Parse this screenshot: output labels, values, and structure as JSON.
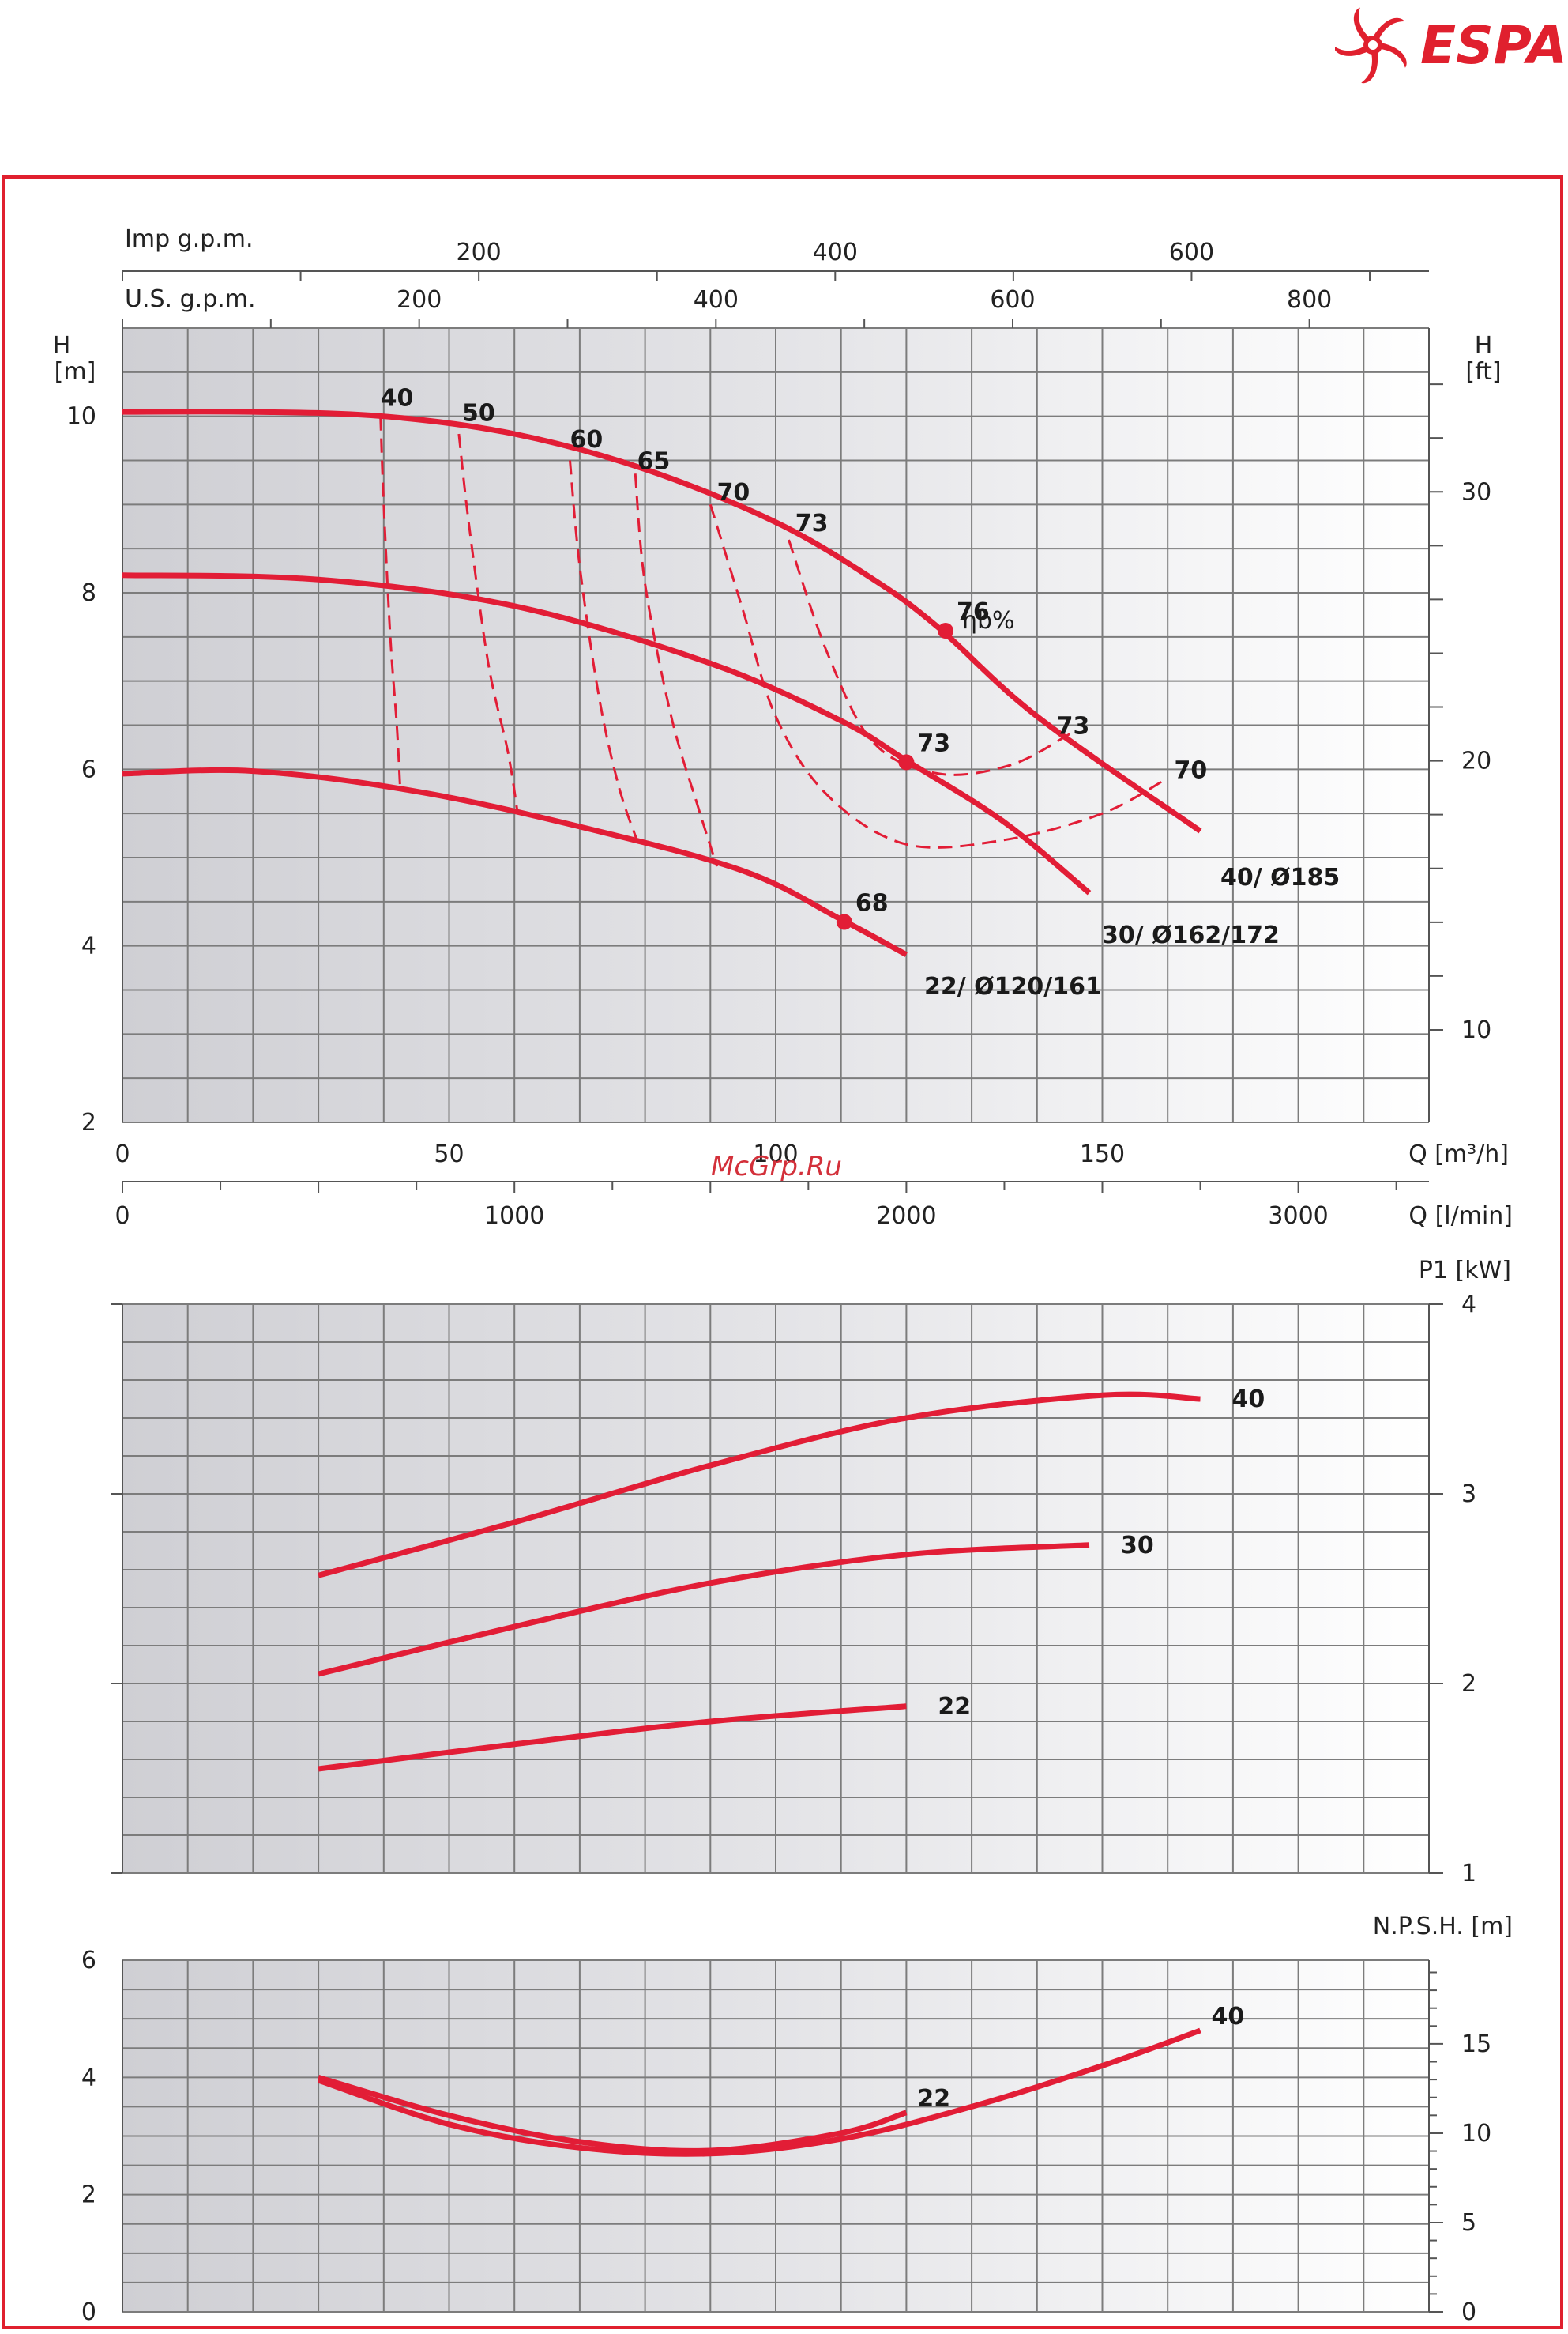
{
  "brand": {
    "name": "ESPA",
    "color": "#e0202e"
  },
  "watermark": "McGrp.Ru",
  "colors": {
    "curve": "#e21d36",
    "grid": "#7c7c7c",
    "frame": "#e0202e"
  },
  "chart_data": [
    {
      "type": "line",
      "id": "head",
      "title": "",
      "ylabel_left": [
        "H",
        "[m]"
      ],
      "ylabel_right": [
        "H",
        "[ft]"
      ],
      "xlabel": "Q [m³/h]",
      "xlabel_lmin": "Q [l/min]",
      "label_imp": "Imp g.p.m.",
      "label_us": "U.S. g.p.m.",
      "xlim": [
        0,
        200
      ],
      "ylim": [
        2,
        11
      ],
      "x_ticks": [
        0,
        50,
        100,
        150
      ],
      "y_ticks_left": [
        2,
        4,
        6,
        8,
        10
      ],
      "y_ticks_right": [
        10,
        20,
        30
      ],
      "lmin_ticks": [
        0,
        1000,
        2000,
        3000
      ],
      "imp_ticks": [
        200,
        400,
        600
      ],
      "us_ticks": [
        200,
        400,
        600,
        800
      ],
      "efficiency_label": "ηb%",
      "series": [
        {
          "name": "40/ Ø185",
          "x": [
            0,
            20,
            40,
            60,
            80,
            100,
            115,
            125,
            140,
            165
          ],
          "y": [
            10.05,
            10.05,
            10.0,
            9.8,
            9.4,
            8.8,
            8.15,
            7.6,
            6.6,
            5.3
          ]
        },
        {
          "name": "30/ Ø162/172",
          "x": [
            0,
            30,
            60,
            90,
            110,
            120,
            135,
            148
          ],
          "y": [
            8.2,
            8.15,
            7.85,
            7.2,
            6.55,
            6.1,
            5.4,
            4.6
          ]
        },
        {
          "name": "22/ Ø120/161",
          "x": [
            0,
            20,
            45,
            70,
            95,
            110,
            120
          ],
          "y": [
            5.95,
            5.98,
            5.75,
            5.35,
            4.85,
            4.3,
            3.9
          ]
        }
      ],
      "points": [
        {
          "x": 126,
          "y": 7.57,
          "label": "76"
        },
        {
          "x": 120,
          "y": 6.08,
          "label": "73"
        },
        {
          "x": 110.5,
          "y": 4.27,
          "label": "68"
        }
      ],
      "efficiency_curves": [
        {
          "label": "40",
          "x": [
            39.5,
            40,
            41,
            42,
            42.5
          ],
          "y": [
            10.0,
            9.0,
            7.5,
            6.5,
            5.8
          ]
        },
        {
          "label": "50",
          "x": [
            51.5,
            53,
            56,
            59,
            60.5
          ],
          "y": [
            9.8,
            8.8,
            7.2,
            6.2,
            5.5
          ]
        },
        {
          "label": "60",
          "x": [
            68.5,
            70,
            73,
            76,
            79
          ],
          "y": [
            9.5,
            8.3,
            6.8,
            5.8,
            5.15
          ]
        },
        {
          "label": "65",
          "x": [
            78.5,
            80,
            84,
            88,
            91
          ],
          "y": [
            9.35,
            8.1,
            6.6,
            5.6,
            4.9
          ]
        },
        {
          "label": "70",
          "x": [
            90,
            95,
            100,
            108,
            120,
            135,
            150,
            160
          ],
          "y": [
            9.0,
            7.8,
            6.6,
            5.7,
            5.15,
            5.2,
            5.5,
            5.9
          ]
        },
        {
          "label": "73",
          "x": [
            102,
            108,
            115,
            125,
            136,
            145
          ],
          "y": [
            8.6,
            7.3,
            6.3,
            5.95,
            6.05,
            6.4
          ]
        }
      ],
      "efficiency_labels": [
        {
          "x": 39.5,
          "y": 10.12,
          "text": "40"
        },
        {
          "x": 52,
          "y": 9.95,
          "text": "50"
        },
        {
          "x": 68.5,
          "y": 9.65,
          "text": "60"
        },
        {
          "x": 78.8,
          "y": 9.4,
          "text": "65"
        },
        {
          "x": 91,
          "y": 9.05,
          "text": "70"
        },
        {
          "x": 103,
          "y": 8.7,
          "text": "73"
        },
        {
          "x": 143,
          "y": 6.4,
          "text": "73"
        },
        {
          "x": 161,
          "y": 5.9,
          "text": "70"
        }
      ]
    },
    {
      "type": "line",
      "id": "power",
      "ylabel_right": "P1 [kW]",
      "xlim": [
        0,
        200
      ],
      "ylim": [
        1,
        4
      ],
      "y_ticks_right": [
        1,
        2,
        3,
        4
      ],
      "series": [
        {
          "name": "40",
          "x": [
            30,
            60,
            90,
            120,
            150,
            165
          ],
          "y": [
            2.57,
            2.85,
            3.15,
            3.4,
            3.52,
            3.5
          ]
        },
        {
          "name": "30",
          "x": [
            30,
            60,
            90,
            120,
            148
          ],
          "y": [
            2.05,
            2.3,
            2.53,
            2.68,
            2.73
          ]
        },
        {
          "name": "22",
          "x": [
            30,
            60,
            90,
            120
          ],
          "y": [
            1.55,
            1.68,
            1.8,
            1.88
          ]
        }
      ]
    },
    {
      "type": "line",
      "id": "npsh",
      "ylabel_right": "N.P.S.H. [m]",
      "xlim": [
        0,
        200
      ],
      "ylim": [
        0,
        6
      ],
      "y_ticks_left": [
        0,
        2,
        4,
        6
      ],
      "y_ticks_right": [
        0,
        5,
        10,
        15
      ],
      "series": [
        {
          "name": "40",
          "x": [
            30,
            50,
            70,
            90,
            110,
            130,
            150,
            165
          ],
          "y": [
            3.95,
            3.2,
            2.8,
            2.7,
            2.95,
            3.5,
            4.2,
            4.8
          ]
        },
        {
          "name": "22",
          "x": [
            30,
            50,
            70,
            90,
            110,
            120
          ],
          "y": [
            4.0,
            3.35,
            2.9,
            2.75,
            3.05,
            3.4
          ]
        }
      ]
    }
  ]
}
